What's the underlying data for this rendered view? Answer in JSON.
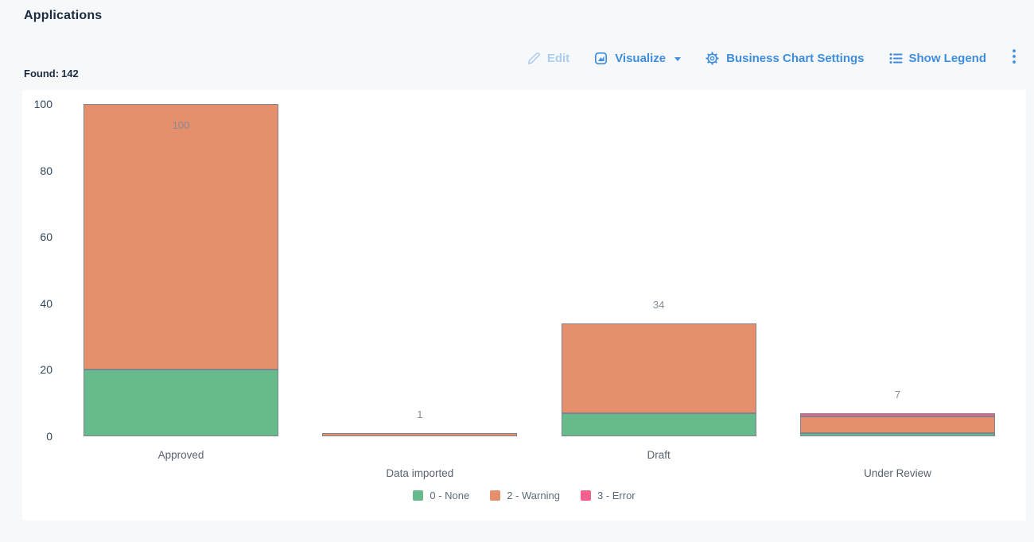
{
  "page": {
    "title": "Applications",
    "found_label": "Found:",
    "found_value": "142"
  },
  "toolbar": {
    "edit_label": "Edit",
    "visualize_label": "Visualize",
    "settings_label": "Business Chart Settings",
    "show_legend_label": "Show Legend",
    "accent_color": "#3f8dde",
    "disabled_color": "#abcdf0",
    "icons": {
      "edit": "pencil-icon",
      "visualize": "chart-frame-icon",
      "settings": "gear-icon",
      "show_legend": "list-icon",
      "overflow": "kebab-menu-icon"
    }
  },
  "chart_data": {
    "type": "bar",
    "stacked": true,
    "title": "",
    "xlabel": "",
    "ylabel": "",
    "categories": [
      "Approved",
      "Data imported",
      "Draft",
      "Under Review"
    ],
    "series": [
      {
        "name": "0 - None",
        "color": "#66ba8b",
        "values": [
          20,
          0,
          7,
          1
        ]
      },
      {
        "name": "2 - Warning",
        "color": "#e68f6d",
        "values": [
          80,
          1,
          27,
          5
        ]
      },
      {
        "name": "3 - Error",
        "color": "#f6608c",
        "values": [
          0,
          0,
          0,
          1
        ]
      }
    ],
    "totals": [
      100,
      1,
      34,
      7
    ],
    "ylim": [
      0,
      100
    ],
    "yticks": [
      0,
      20,
      40,
      60,
      80,
      100
    ],
    "grid": false,
    "legend_position": "bottom",
    "bar_border_color": "#7f848c",
    "value_label_color": "#838b97",
    "axis_label_color": "#33475b",
    "category_label_color": "#5a6370"
  }
}
